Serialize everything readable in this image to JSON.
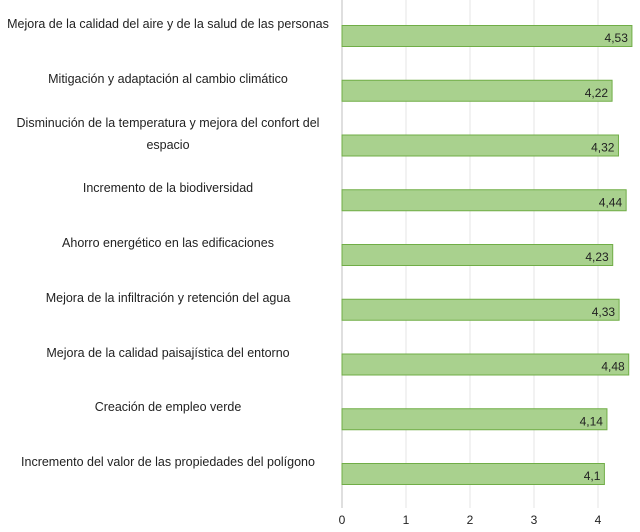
{
  "chart_data": {
    "type": "hbar",
    "categories": [
      "Mejora de la calidad del aire y de la salud de las personas",
      "Mitigación y adaptación al cambio climático",
      "Disminución de la temperatura y mejora del confort del espacio",
      "Incremento de la biodiversidad",
      "Ahorro energético en las edificaciones",
      "Mejora de la infiltración y retención del agua",
      "Mejora de la calidad paisajística del entorno",
      "Creación de empleo verde",
      "Incremento del valor de las propiedades del polígono"
    ],
    "values": [
      4.53,
      4.22,
      4.32,
      4.44,
      4.23,
      4.33,
      4.48,
      4.14,
      4.1
    ],
    "value_labels": [
      "4,53",
      "4,22",
      "4,32",
      "4,44",
      "4,23",
      "4,33",
      "4,48",
      "4,14",
      "4,1"
    ],
    "color": "#a9d18e",
    "edge_color": "#70ad47",
    "xlim": [
      0,
      4.6
    ],
    "xticks": [
      0,
      1,
      2,
      3,
      4
    ],
    "grid": true
  }
}
